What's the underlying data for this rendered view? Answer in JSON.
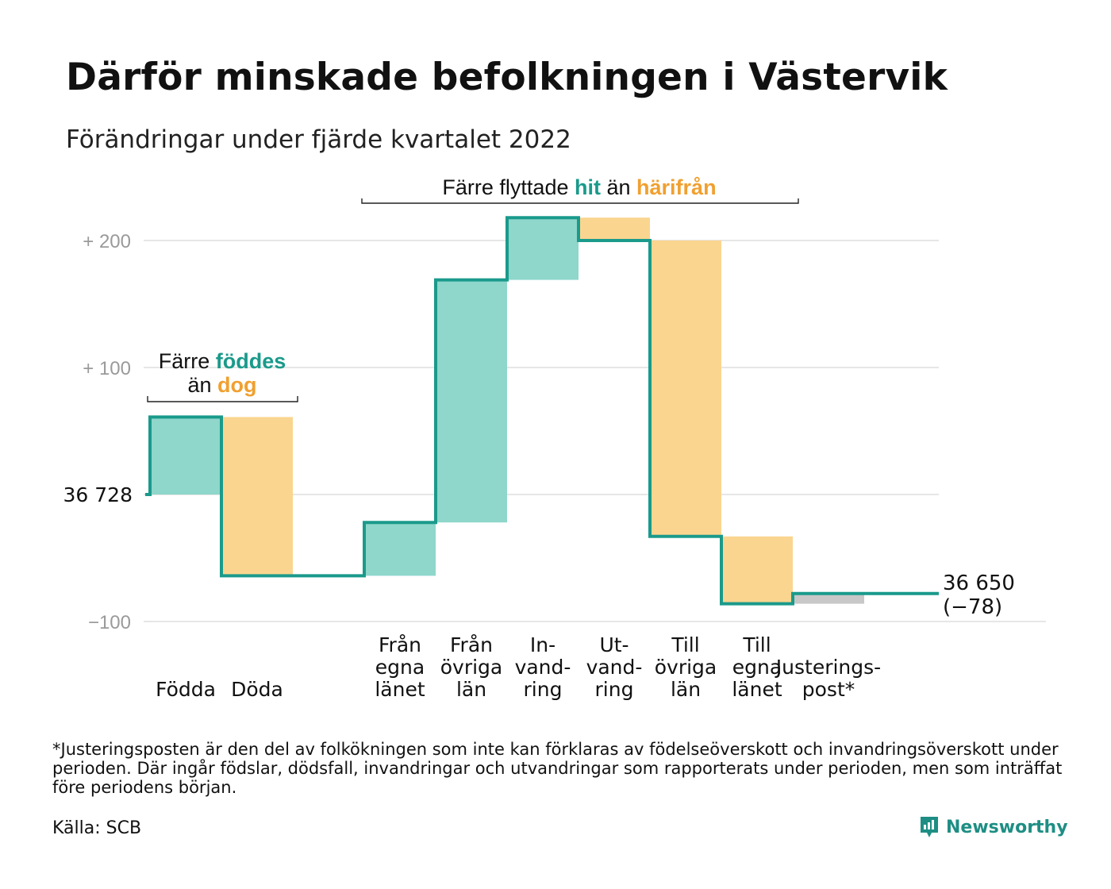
{
  "title": "Därför minskade befolkningen i Västervik",
  "subtitle": "Förändringar under fjärde kvartalet 2022",
  "colors": {
    "increase": "#8fd6cb",
    "decrease": "#fad58f",
    "adjustment": "#c8c8c8",
    "line": "#1a9a8b",
    "grid": "#e6e6e6",
    "teal_text": "#1a9a8b",
    "orange_text": "#f0a030"
  },
  "chart_data": {
    "type": "waterfall",
    "start_value": 36728,
    "start_label": "36 728",
    "end_value": 36650,
    "end_label": "36 650",
    "end_change_label": "(−78)",
    "y_relative_range": [
      -100,
      200
    ],
    "y_ticks": [
      {
        "value": 200,
        "label": "+ 200"
      },
      {
        "value": 100,
        "label": "+ 100"
      },
      {
        "value": 0,
        "label": ""
      },
      {
        "value": -100,
        "label": "−100"
      }
    ],
    "steps": [
      {
        "key": "fodda",
        "label": [
          "Födda"
        ],
        "from": 0,
        "to": 61,
        "kind": "increase"
      },
      {
        "key": "doda",
        "label": [
          "Döda"
        ],
        "from": 61,
        "to": -64,
        "kind": "decrease"
      },
      {
        "key": "fran_egna_lanet",
        "label": [
          "Från",
          "egna",
          "länet"
        ],
        "from": -64,
        "to": -22,
        "kind": "increase"
      },
      {
        "key": "fran_ovriga_lan",
        "label": [
          "Från",
          "övriga",
          "län"
        ],
        "from": -22,
        "to": 169,
        "kind": "increase"
      },
      {
        "key": "invandring",
        "label": [
          "In-",
          "vand-",
          "ring"
        ],
        "from": 169,
        "to": 218,
        "kind": "increase"
      },
      {
        "key": "utvandring",
        "label": [
          "Ut-",
          "vand-",
          "ring"
        ],
        "from": 218,
        "to": 200,
        "kind": "decrease"
      },
      {
        "key": "till_ovriga_lan",
        "label": [
          "Till",
          "övriga",
          "län"
        ],
        "from": 200,
        "to": -33,
        "kind": "decrease"
      },
      {
        "key": "till_egna_lanet",
        "label": [
          "Till",
          "egna",
          "länet"
        ],
        "from": -33,
        "to": -86,
        "kind": "decrease"
      },
      {
        "key": "justeringspost",
        "label": [
          "Justerings-",
          "post*"
        ],
        "from": -86,
        "to": -78,
        "kind": "adjustment"
      }
    ],
    "annotations": {
      "births": {
        "line1_prefix": "Färre ",
        "line1_highlight": "föddes",
        "line2_prefix": "än ",
        "line2_highlight": "dog"
      },
      "migration": {
        "prefix": "Färre flyttade ",
        "highlight1": "hit",
        "middle": " än ",
        "highlight2": "härifrån"
      }
    }
  },
  "footnote": "*Justeringsposten är den del av folkökningen som inte kan förklaras av födelseöverskott och invandringsöverskott under perioden. Där ingår födslar, dödsfall, invandringar och utvandringar som rapporterats under perioden, men som inträffat före periodens början.",
  "source": "Källa: SCB",
  "logo_text": "Newsworthy"
}
